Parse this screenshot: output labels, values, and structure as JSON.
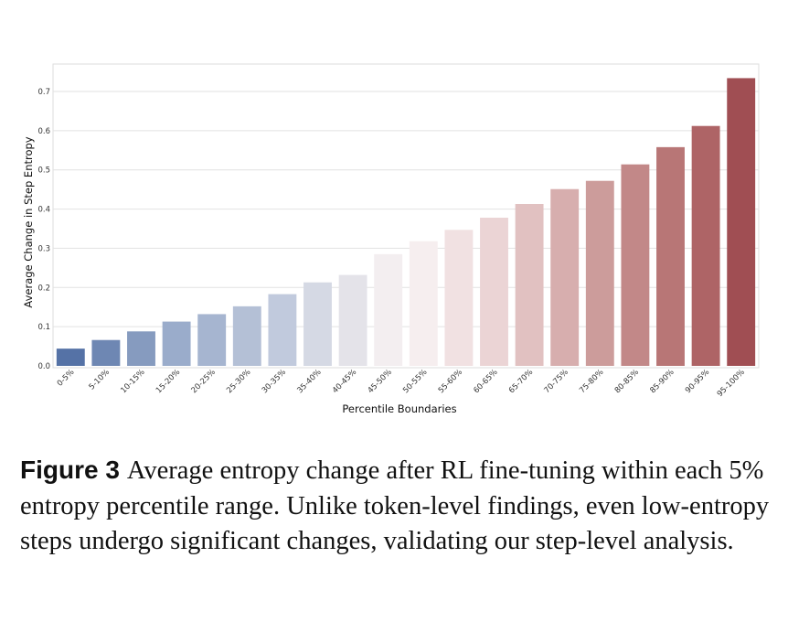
{
  "chart_data": {
    "type": "bar",
    "title": "",
    "xlabel": "Percentile Boundaries",
    "ylabel": "Average Change in Step Entropy",
    "ylim": [
      0,
      0.77
    ],
    "yticks": [
      "0.0",
      "0.1",
      "0.2",
      "0.3",
      "0.4",
      "0.5",
      "0.6",
      "0.7"
    ],
    "grid": "horizontal",
    "categories": [
      "0-5%",
      "5-10%",
      "10-15%",
      "15-20%",
      "20-25%",
      "25-30%",
      "30-35%",
      "35-40%",
      "40-45%",
      "45-50%",
      "50-55%",
      "55-60%",
      "60-65%",
      "65-70%",
      "70-75%",
      "75-80%",
      "80-85%",
      "85-90%",
      "90-95%",
      "95-100%"
    ],
    "values": [
      0.044,
      0.066,
      0.088,
      0.113,
      0.132,
      0.152,
      0.183,
      0.213,
      0.232,
      0.285,
      0.318,
      0.347,
      0.378,
      0.413,
      0.451,
      0.472,
      0.514,
      0.558,
      0.612,
      0.734
    ],
    "colors": [
      "#5572a6",
      "#6e87b3",
      "#869bbf",
      "#9aaccb",
      "#a6b5d0",
      "#b4c0d6",
      "#c1cadd",
      "#d5d9e4",
      "#e4e3e9",
      "#f3eef0",
      "#f6eeef",
      "#f1e1e2",
      "#ebd4d5",
      "#e1c1c1",
      "#d7aeae",
      "#cc9c9b",
      "#c28888",
      "#b87676",
      "#ae6466",
      "#a04e53"
    ]
  },
  "caption": {
    "label": "Figure 3",
    "text": "Average entropy change after RL fine-tuning within each 5% entropy percentile range. Unlike token-level findings, even low-entropy steps undergo significant changes, validating our step-level analysis."
  }
}
